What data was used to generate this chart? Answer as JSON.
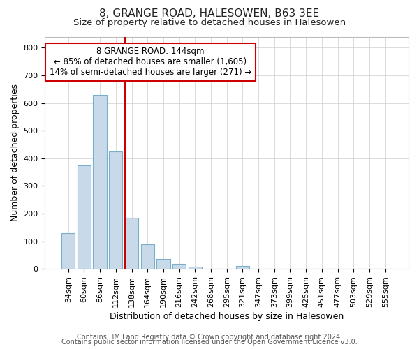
{
  "title1": "8, GRANGE ROAD, HALESOWEN, B63 3EE",
  "title2": "Size of property relative to detached houses in Halesowen",
  "xlabel": "Distribution of detached houses by size in Halesowen",
  "ylabel": "Number of detached properties",
  "categories": [
    "34sqm",
    "60sqm",
    "86sqm",
    "112sqm",
    "138sqm",
    "164sqm",
    "190sqm",
    "216sqm",
    "242sqm",
    "268sqm",
    "295sqm",
    "321sqm",
    "347sqm",
    "373sqm",
    "399sqm",
    "425sqm",
    "451sqm",
    "477sqm",
    "503sqm",
    "529sqm",
    "555sqm"
  ],
  "values": [
    130,
    375,
    630,
    425,
    185,
    88,
    35,
    18,
    8,
    0,
    0,
    10,
    0,
    0,
    0,
    0,
    0,
    0,
    0,
    0,
    0
  ],
  "bar_color": "#c8daea",
  "bar_edge_color": "#7aafc8",
  "vline_color": "#cc0000",
  "vline_index": 4,
  "annotation_box_text": "8 GRANGE ROAD: 144sqm\n← 85% of detached houses are smaller (1,605)\n14% of semi-detached houses are larger (271) →",
  "annotation_box_color": "#ffffff",
  "annotation_box_edge_color": "#cc0000",
  "ylim": [
    0,
    840
  ],
  "yticks": [
    0,
    100,
    200,
    300,
    400,
    500,
    600,
    700,
    800
  ],
  "grid_color": "#cccccc",
  "background_color": "#ffffff",
  "footer1": "Contains HM Land Registry data © Crown copyright and database right 2024.",
  "footer2": "Contains public sector information licensed under the Open Government Licence v3.0.",
  "title1_fontsize": 11,
  "title2_fontsize": 9.5,
  "xlabel_fontsize": 9,
  "ylabel_fontsize": 9,
  "tick_fontsize": 8,
  "footer_fontsize": 7,
  "ann_fontsize": 8.5
}
